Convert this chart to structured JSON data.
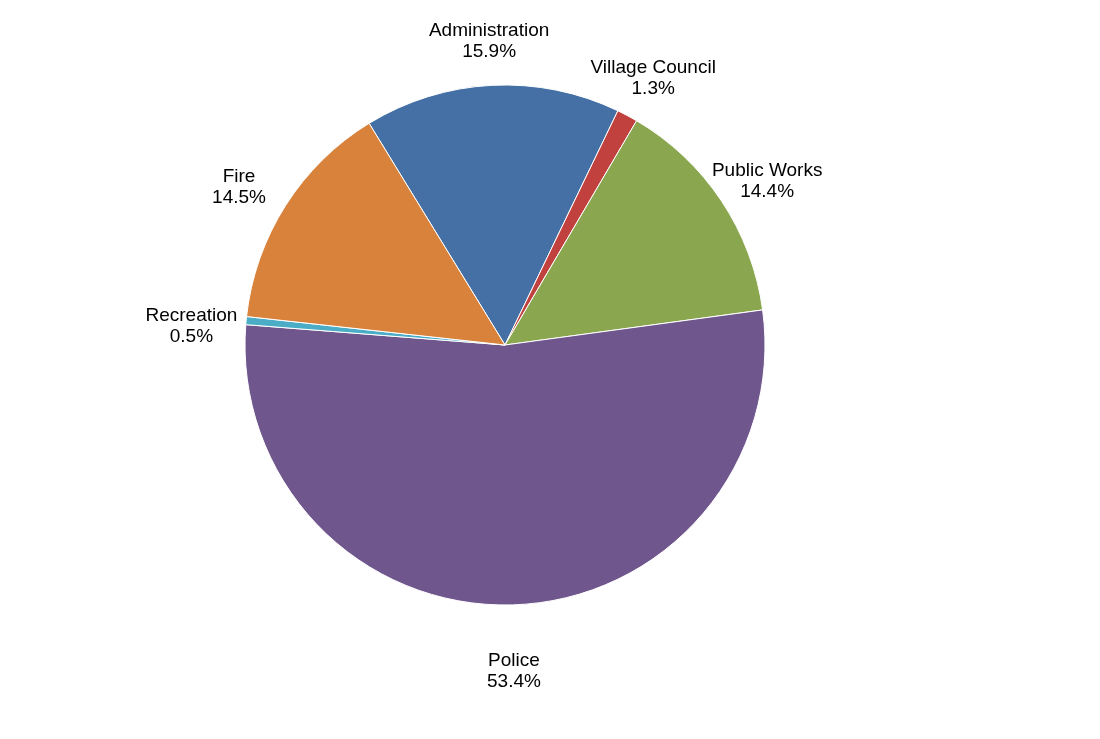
{
  "chart_data": {
    "type": "pie",
    "categories": [
      "Administration",
      "Village Council",
      "Public Works",
      "Police",
      "Recreation",
      "Fire"
    ],
    "values": [
      15.9,
      1.3,
      14.4,
      53.4,
      0.5,
      14.5
    ],
    "value_labels": [
      "15.9%",
      "1.3%",
      "14.4%",
      "53.4%",
      "0.5%",
      "14.5%"
    ],
    "colors": [
      "#4470a6",
      "#c0413e",
      "#8aa64e",
      "#6f568c",
      "#4bacc6",
      "#d8823b"
    ],
    "legend": false
  }
}
